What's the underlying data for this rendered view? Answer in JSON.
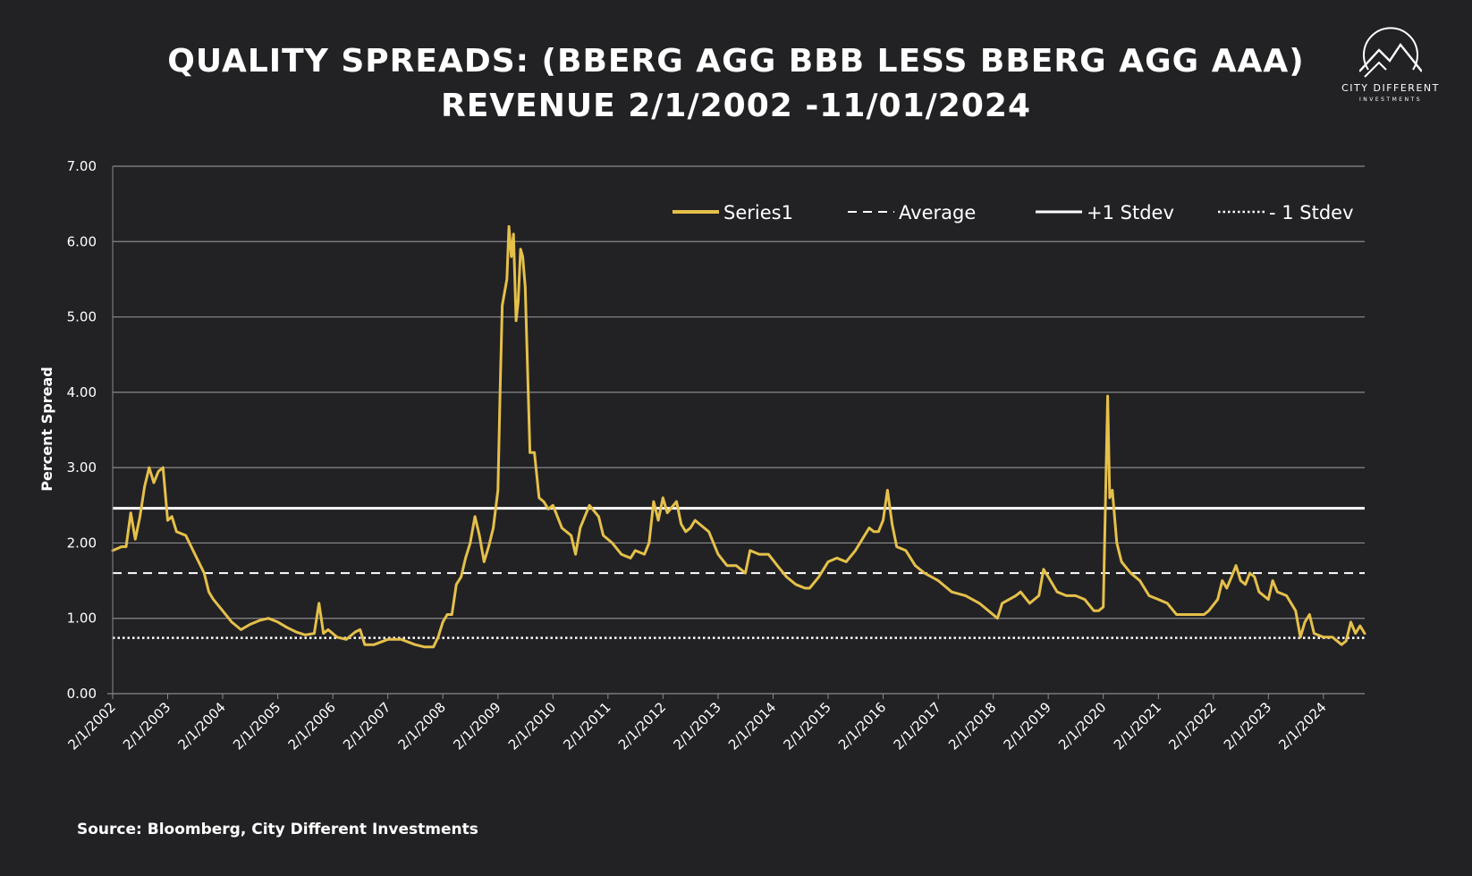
{
  "title_line1": "QUALITY SPREADS: (BBERG AGG BBB LESS BBERG AGG AAA)",
  "title_line2": "REVENUE 2/1/2002 -11/01/2024",
  "logo": {
    "name": "CITY DIFFERENT",
    "sub": "INVESTMENTS"
  },
  "source": "Source: Bloomberg, City Different Investments",
  "colors": {
    "background": "#222225",
    "series": "#E5C04A",
    "grid": "#8a8a8c",
    "reference": "#ffffff"
  },
  "chart_data": {
    "type": "line",
    "title": "QUALITY SPREADS: (BBERG AGG BBB LESS BBERG AGG AAA) REVENUE 2/1/2002 -11/01/2024",
    "xlabel": "",
    "ylabel": "Percent Spread",
    "ylim": [
      0,
      7
    ],
    "y_ticks": [
      "0.00",
      "1.00",
      "2.00",
      "3.00",
      "4.00",
      "5.00",
      "6.00",
      "7.00"
    ],
    "x_range": [
      "2002-02-01",
      "2024-11-01"
    ],
    "x_ticks": [
      "2/1/2002",
      "2/1/2003",
      "2/1/2004",
      "2/1/2005",
      "2/1/2006",
      "2/1/2007",
      "2/1/2008",
      "2/1/2009",
      "2/1/2010",
      "2/1/2011",
      "2/1/2012",
      "2/1/2013",
      "2/1/2014",
      "2/1/2015",
      "2/1/2016",
      "2/1/2017",
      "2/1/2018",
      "2/1/2019",
      "2/1/2020",
      "2/1/2021",
      "2/1/2022",
      "2/1/2023",
      "2/1/2024"
    ],
    "grid": true,
    "legend_position": "top-right",
    "legend": [
      "Series1",
      "Average",
      "+1 Stdev",
      "- 1 Stdev"
    ],
    "reference_lines": [
      {
        "name": "Average",
        "value": 1.6,
        "style": "dashed"
      },
      {
        "name": "+1 Stdev",
        "value": 2.46,
        "style": "solid"
      },
      {
        "name": "- 1 Stdev",
        "value": 0.74,
        "style": "dotted"
      }
    ],
    "series": [
      {
        "name": "Series1",
        "color": "#E5C04A",
        "points": [
          [
            "2002-02-01",
            1.9
          ],
          [
            "2002-04-01",
            1.95
          ],
          [
            "2002-05-01",
            1.95
          ],
          [
            "2002-06-01",
            2.4
          ],
          [
            "2002-07-01",
            2.05
          ],
          [
            "2002-08-01",
            2.35
          ],
          [
            "2002-09-01",
            2.75
          ],
          [
            "2002-10-01",
            3.0
          ],
          [
            "2002-11-01",
            2.8
          ],
          [
            "2002-12-01",
            2.95
          ],
          [
            "2003-01-01",
            3.0
          ],
          [
            "2003-02-01",
            2.3
          ],
          [
            "2003-03-01",
            2.35
          ],
          [
            "2003-04-01",
            2.15
          ],
          [
            "2003-06-01",
            2.1
          ],
          [
            "2003-08-01",
            1.85
          ],
          [
            "2003-10-01",
            1.6
          ],
          [
            "2003-11-01",
            1.35
          ],
          [
            "2003-12-01",
            1.25
          ],
          [
            "2004-02-01",
            1.1
          ],
          [
            "2004-04-01",
            0.95
          ],
          [
            "2004-06-01",
            0.85
          ],
          [
            "2004-08-01",
            0.92
          ],
          [
            "2004-10-01",
            0.97
          ],
          [
            "2004-12-01",
            1.0
          ],
          [
            "2005-02-01",
            0.95
          ],
          [
            "2005-04-01",
            0.88
          ],
          [
            "2005-06-01",
            0.82
          ],
          [
            "2005-08-01",
            0.78
          ],
          [
            "2005-10-01",
            0.8
          ],
          [
            "2005-11-01",
            1.2
          ],
          [
            "2005-12-01",
            0.8
          ],
          [
            "2006-01-01",
            0.85
          ],
          [
            "2006-03-01",
            0.75
          ],
          [
            "2006-05-01",
            0.72
          ],
          [
            "2006-07-01",
            0.82
          ],
          [
            "2006-08-01",
            0.85
          ],
          [
            "2006-09-01",
            0.65
          ],
          [
            "2006-11-01",
            0.65
          ],
          [
            "2007-02-01",
            0.72
          ],
          [
            "2007-05-01",
            0.72
          ],
          [
            "2007-08-01",
            0.65
          ],
          [
            "2007-10-01",
            0.62
          ],
          [
            "2007-12-01",
            0.62
          ],
          [
            "2008-01-01",
            0.75
          ],
          [
            "2008-02-01",
            0.95
          ],
          [
            "2008-03-01",
            1.05
          ],
          [
            "2008-04-01",
            1.05
          ],
          [
            "2008-05-01",
            1.45
          ],
          [
            "2008-06-01",
            1.55
          ],
          [
            "2008-07-01",
            1.8
          ],
          [
            "2008-08-01",
            2.0
          ],
          [
            "2008-09-01",
            2.35
          ],
          [
            "2008-10-01",
            2.1
          ],
          [
            "2008-11-01",
            1.75
          ],
          [
            "2008-12-01",
            1.95
          ],
          [
            "2009-01-01",
            2.2
          ],
          [
            "2009-02-01",
            2.7
          ],
          [
            "2009-02-15",
            4.0
          ],
          [
            "2009-03-01",
            5.15
          ],
          [
            "2009-04-01",
            5.5
          ],
          [
            "2009-04-15",
            6.2
          ],
          [
            "2009-05-01",
            5.8
          ],
          [
            "2009-05-15",
            6.1
          ],
          [
            "2009-06-01",
            4.95
          ],
          [
            "2009-06-15",
            5.2
          ],
          [
            "2009-07-01",
            5.9
          ],
          [
            "2009-07-15",
            5.8
          ],
          [
            "2009-08-01",
            5.4
          ],
          [
            "2009-08-15",
            4.4
          ],
          [
            "2009-09-01",
            3.2
          ],
          [
            "2009-10-01",
            3.2
          ],
          [
            "2009-11-01",
            2.6
          ],
          [
            "2009-12-01",
            2.55
          ],
          [
            "2010-01-01",
            2.45
          ],
          [
            "2010-02-01",
            2.5
          ],
          [
            "2010-04-01",
            2.2
          ],
          [
            "2010-06-01",
            2.1
          ],
          [
            "2010-07-01",
            1.85
          ],
          [
            "2010-08-01",
            2.2
          ],
          [
            "2010-10-01",
            2.5
          ],
          [
            "2010-12-01",
            2.35
          ],
          [
            "2011-01-01",
            2.1
          ],
          [
            "2011-03-01",
            2.0
          ],
          [
            "2011-05-01",
            1.85
          ],
          [
            "2011-07-01",
            1.8
          ],
          [
            "2011-08-01",
            1.9
          ],
          [
            "2011-10-01",
            1.85
          ],
          [
            "2011-11-01",
            2.0
          ],
          [
            "2011-12-01",
            2.55
          ],
          [
            "2012-01-01",
            2.3
          ],
          [
            "2012-02-01",
            2.6
          ],
          [
            "2012-03-01",
            2.4
          ],
          [
            "2012-05-01",
            2.55
          ],
          [
            "2012-06-01",
            2.25
          ],
          [
            "2012-07-01",
            2.15
          ],
          [
            "2012-08-01",
            2.2
          ],
          [
            "2012-09-01",
            2.3
          ],
          [
            "2012-11-01",
            2.2
          ],
          [
            "2012-12-01",
            2.15
          ],
          [
            "2013-02-01",
            1.85
          ],
          [
            "2013-04-01",
            1.7
          ],
          [
            "2013-06-01",
            1.7
          ],
          [
            "2013-08-01",
            1.6
          ],
          [
            "2013-09-01",
            1.9
          ],
          [
            "2013-11-01",
            1.85
          ],
          [
            "2014-01-01",
            1.85
          ],
          [
            "2014-03-01",
            1.7
          ],
          [
            "2014-05-01",
            1.55
          ],
          [
            "2014-07-01",
            1.45
          ],
          [
            "2014-09-01",
            1.4
          ],
          [
            "2014-10-01",
            1.4
          ],
          [
            "2014-12-01",
            1.55
          ],
          [
            "2015-02-01",
            1.75
          ],
          [
            "2015-04-01",
            1.8
          ],
          [
            "2015-06-01",
            1.75
          ],
          [
            "2015-08-01",
            1.9
          ],
          [
            "2015-10-01",
            2.1
          ],
          [
            "2015-11-01",
            2.2
          ],
          [
            "2015-12-01",
            2.15
          ],
          [
            "2016-01-01",
            2.15
          ],
          [
            "2016-02-01",
            2.3
          ],
          [
            "2016-03-01",
            2.7
          ],
          [
            "2016-04-01",
            2.25
          ],
          [
            "2016-05-01",
            1.95
          ],
          [
            "2016-07-01",
            1.9
          ],
          [
            "2016-09-01",
            1.7
          ],
          [
            "2016-11-01",
            1.6
          ],
          [
            "2017-02-01",
            1.5
          ],
          [
            "2017-05-01",
            1.35
          ],
          [
            "2017-08-01",
            1.3
          ],
          [
            "2017-11-01",
            1.2
          ],
          [
            "2018-01-01",
            1.1
          ],
          [
            "2018-03-01",
            1.0
          ],
          [
            "2018-04-01",
            1.2
          ],
          [
            "2018-07-01",
            1.3
          ],
          [
            "2018-08-01",
            1.35
          ],
          [
            "2018-10-01",
            1.2
          ],
          [
            "2018-12-01",
            1.3
          ],
          [
            "2019-01-01",
            1.65
          ],
          [
            "2019-02-01",
            1.55
          ],
          [
            "2019-04-01",
            1.35
          ],
          [
            "2019-06-01",
            1.3
          ],
          [
            "2019-08-01",
            1.3
          ],
          [
            "2019-10-01",
            1.25
          ],
          [
            "2019-12-01",
            1.1
          ],
          [
            "2020-01-01",
            1.1
          ],
          [
            "2020-02-01",
            1.15
          ],
          [
            "2020-03-01",
            3.95
          ],
          [
            "2020-03-15",
            2.6
          ],
          [
            "2020-04-01",
            2.7
          ],
          [
            "2020-05-01",
            2.0
          ],
          [
            "2020-06-01",
            1.75
          ],
          [
            "2020-08-01",
            1.6
          ],
          [
            "2020-10-01",
            1.5
          ],
          [
            "2020-12-01",
            1.3
          ],
          [
            "2021-02-01",
            1.25
          ],
          [
            "2021-04-01",
            1.2
          ],
          [
            "2021-06-01",
            1.05
          ],
          [
            "2021-09-01",
            1.05
          ],
          [
            "2021-12-01",
            1.05
          ],
          [
            "2022-01-01",
            1.1
          ],
          [
            "2022-03-01",
            1.25
          ],
          [
            "2022-04-01",
            1.5
          ],
          [
            "2022-05-01",
            1.4
          ],
          [
            "2022-06-01",
            1.55
          ],
          [
            "2022-07-01",
            1.7
          ],
          [
            "2022-08-01",
            1.5
          ],
          [
            "2022-09-01",
            1.45
          ],
          [
            "2022-10-01",
            1.6
          ],
          [
            "2022-11-01",
            1.55
          ],
          [
            "2022-12-01",
            1.35
          ],
          [
            "2023-01-01",
            1.3
          ],
          [
            "2023-02-01",
            1.25
          ],
          [
            "2023-03-01",
            1.5
          ],
          [
            "2023-04-01",
            1.35
          ],
          [
            "2023-06-01",
            1.3
          ],
          [
            "2023-08-01",
            1.1
          ],
          [
            "2023-09-01",
            0.75
          ],
          [
            "2023-10-01",
            0.95
          ],
          [
            "2023-11-01",
            1.05
          ],
          [
            "2023-12-01",
            0.8
          ],
          [
            "2024-02-01",
            0.75
          ],
          [
            "2024-04-01",
            0.75
          ],
          [
            "2024-06-01",
            0.65
          ],
          [
            "2024-07-01",
            0.7
          ],
          [
            "2024-08-01",
            0.95
          ],
          [
            "2024-09-01",
            0.8
          ],
          [
            "2024-10-01",
            0.9
          ],
          [
            "2024-11-01",
            0.8
          ]
        ]
      }
    ]
  }
}
